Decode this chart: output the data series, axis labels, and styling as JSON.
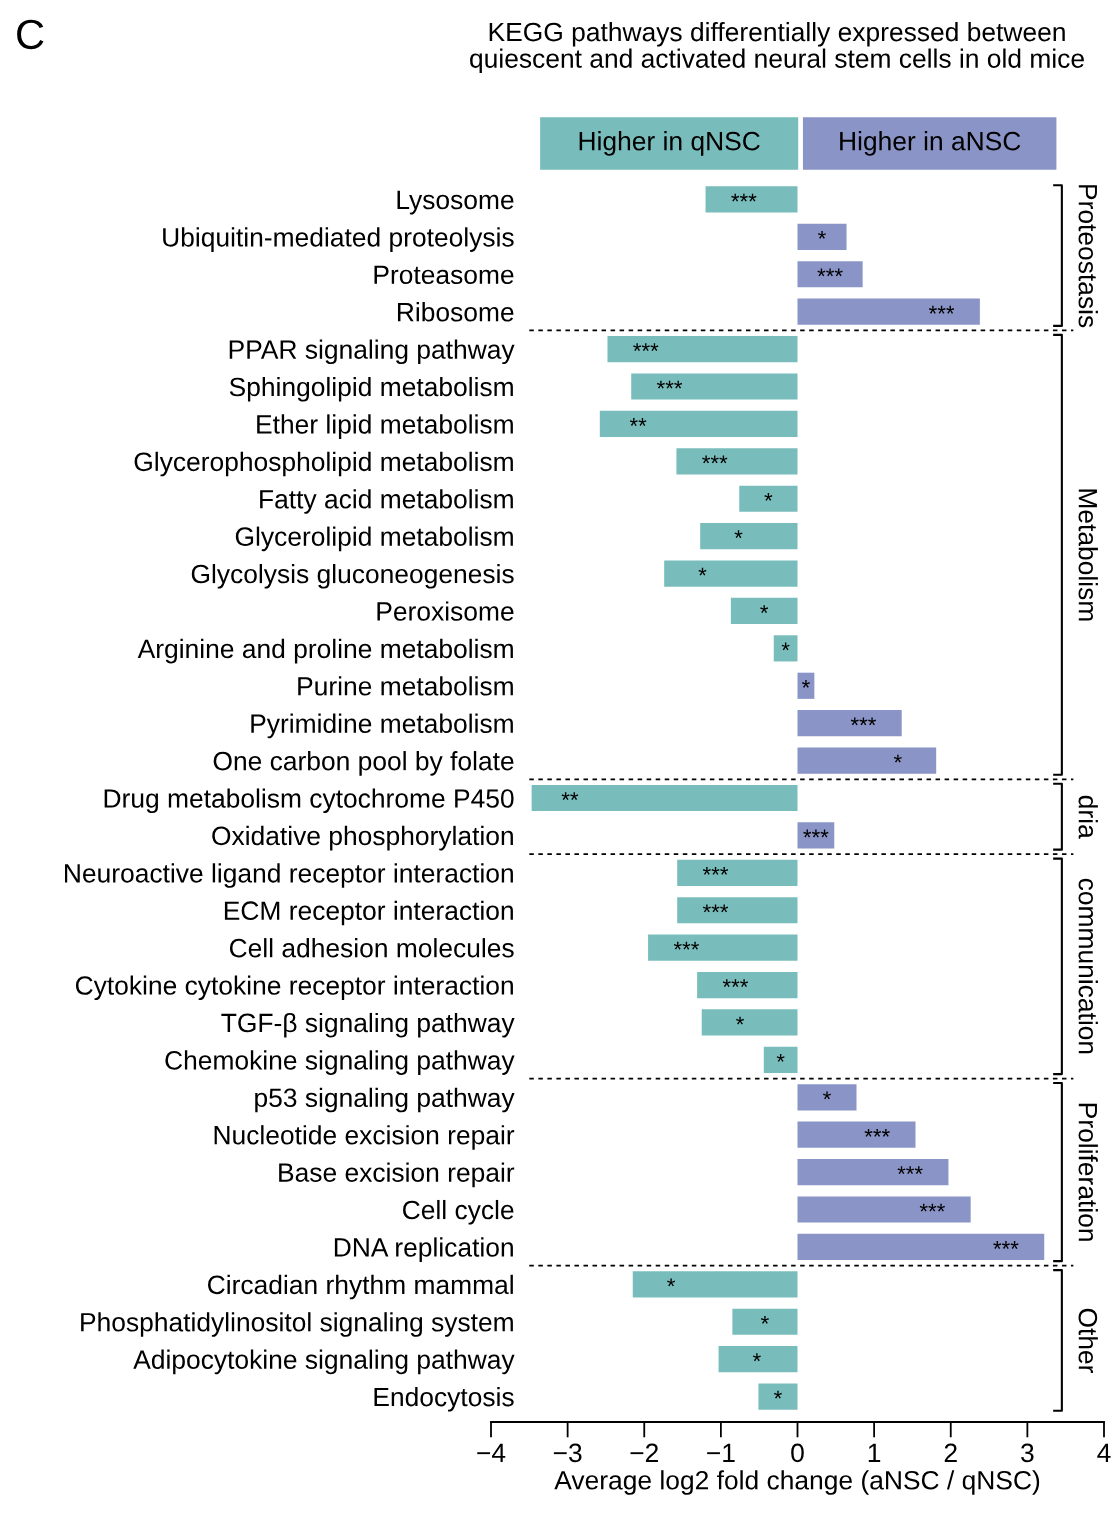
{
  "chart_data": {
    "type": "bar",
    "orientation": "horizontal",
    "title": "KEGG pathways differentially expressed between\nquiescent and activated neural stem cells in old mice",
    "xlabel": "Average log2 fold change (aNSC / qNSC)",
    "categories": [
      "Lysosome",
      "Ubiquitin-mediated proteolysis",
      "Proteasome",
      "Ribosome",
      "PPAR signaling pathway",
      "Sphingolipid metabolism",
      "Ether lipid metabolism",
      "Glycerophospholipid metabolism",
      "Fatty acid metabolism",
      "Glycerolipid metabolism",
      "Glycolysis gluconeogenesis",
      "Peroxisome",
      "Arginine and proline metabolism",
      "Purine metabolism",
      "Pyrimidine metabolism",
      "One carbon pool by folate",
      "Drug metabolism cytochrome P450",
      "Oxidative phosphorylation",
      "Neuroactive ligand receptor interaction",
      "ECM receptor interaction",
      "Cell adhesion molecules",
      "Cytokine cytokine receptor interaction",
      "TGF-β signaling pathway",
      "Chemokine signaling pathway",
      "p53 signaling pathway",
      "Nucleotide excision repair",
      "Base excision repair",
      "Cell cycle",
      "DNA replication",
      "Circadian rhythm mammal",
      "Phosphatidylinositol signaling system",
      "Adipocytokine signaling pathway",
      "Endocytosis"
    ],
    "values": [
      -1.2,
      0.64,
      0.85,
      2.38,
      -2.48,
      -2.17,
      -2.58,
      -1.58,
      -0.76,
      -1.27,
      -1.74,
      -0.87,
      -0.31,
      0.22,
      1.36,
      1.81,
      -3.47,
      0.48,
      -1.57,
      -1.57,
      -1.95,
      -1.31,
      -1.25,
      -0.44,
      0.77,
      1.54,
      1.97,
      2.26,
      3.22,
      -2.15,
      -0.85,
      -1.03,
      -0.51
    ],
    "colors": [
      "#78bdbb",
      "#8a94c6",
      "#8a94c6",
      "#8a94c6",
      "#78bdbb",
      "#78bdbb",
      "#78bdbb",
      "#78bdbb",
      "#78bdbb",
      "#78bdbb",
      "#78bdbb",
      "#78bdbb",
      "#78bdbb",
      "#8a94c6",
      "#8a94c6",
      "#8a94c6",
      "#78bdbb",
      "#8a94c6",
      "#78bdbb",
      "#78bdbb",
      "#78bdbb",
      "#78bdbb",
      "#78bdbb",
      "#78bdbb",
      "#8a94c6",
      "#8a94c6",
      "#8a94c6",
      "#8a94c6",
      "#8a94c6",
      "#78bdbb",
      "#78bdbb",
      "#78bdbb",
      "#78bdbb"
    ],
    "value_labels": [
      "***",
      "*",
      "***",
      "***",
      "***",
      "***",
      "**",
      "***",
      "*",
      "*",
      "*",
      "*",
      "*",
      "*",
      "***",
      "*",
      "**",
      "***",
      "***",
      "***",
      "***",
      "***",
      "*",
      "*",
      "*",
      "***",
      "***",
      "***",
      "***",
      "*",
      "*",
      "*",
      "*"
    ],
    "xlim": [
      -4,
      4
    ],
    "xticks": [
      {
        "value": -4,
        "label": "−4"
      },
      {
        "value": -3,
        "label": "−3"
      },
      {
        "value": -2,
        "label": "−2"
      },
      {
        "value": -1,
        "label": "−1"
      },
      0,
      1,
      2,
      3,
      4
    ],
    "annotations": [
      "C",
      "Higher in qNSC",
      "Higher in aNSC",
      "Proteostasis",
      "Metabolism",
      "dria",
      "communication",
      "Proliferation",
      "Other"
    ],
    "grid": false
  }
}
